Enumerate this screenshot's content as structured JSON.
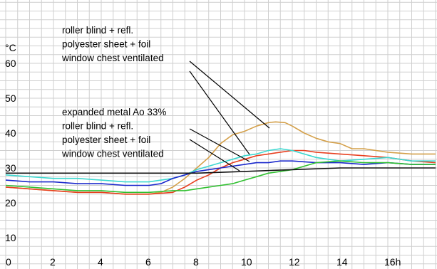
{
  "chart_data": {
    "type": "line",
    "xlim": [
      0,
      18
    ],
    "ylim": [
      0,
      70
    ],
    "grid": true,
    "y_unit_label": "°C",
    "x_tick_labels": [
      {
        "x": 0,
        "label": "0"
      },
      {
        "x": 2,
        "label": "2"
      },
      {
        "x": 4,
        "label": "4"
      },
      {
        "x": 6,
        "label": "6"
      },
      {
        "x": 8,
        "label": "8"
      },
      {
        "x": 10,
        "label": "10"
      },
      {
        "x": 12,
        "label": "12"
      },
      {
        "x": 14,
        "label": "14"
      },
      {
        "x": 16,
        "label": "16h"
      }
    ],
    "y_tick_labels": [
      {
        "y": 0,
        "label": ""
      },
      {
        "y": 10,
        "label": "10"
      },
      {
        "y": 20,
        "label": "20"
      },
      {
        "y": 30,
        "label": "30"
      },
      {
        "y": 40,
        "label": "40"
      },
      {
        "y": 50,
        "label": "50"
      },
      {
        "y": 60,
        "label": "60"
      }
    ],
    "series": [
      {
        "color": "#d4a04a",
        "x": [
          0,
          1,
          2,
          3,
          4,
          5,
          6,
          6.5,
          7,
          7.5,
          8,
          8.5,
          9,
          9.5,
          10,
          10.5,
          11,
          11.3,
          11.7,
          12,
          12.5,
          13,
          13.5,
          14,
          14.5,
          15,
          16,
          17,
          18
        ],
        "y": [
          24.5,
          24,
          23.5,
          23,
          23,
          22.5,
          22.5,
          23,
          24.5,
          27,
          30,
          33,
          37,
          39.5,
          40.5,
          42,
          43,
          43.2,
          43,
          42,
          40,
          38.5,
          37.5,
          37,
          35.5,
          35.5,
          34.5,
          34,
          34
        ]
      },
      {
        "color": "#e84020",
        "x": [
          0,
          1,
          2,
          3,
          4,
          5,
          6,
          7,
          7.5,
          8,
          8.5,
          9,
          9.5,
          10,
          10.5,
          11,
          11.5,
          12,
          12.5,
          13,
          14,
          15,
          16,
          17,
          18
        ],
        "y": [
          24.5,
          24,
          23.5,
          23,
          23,
          22.5,
          22.5,
          23,
          24.5,
          26.5,
          28,
          30,
          31.5,
          32.5,
          33.5,
          34,
          34.5,
          35,
          35,
          34.5,
          34,
          33.5,
          33,
          32,
          31.5
        ]
      },
      {
        "color": "#3cd8d0",
        "x": [
          0,
          1,
          2,
          3,
          4,
          5,
          6,
          6.5,
          7,
          7.5,
          8,
          8.5,
          9,
          9.5,
          10,
          10.5,
          11,
          11.5,
          12,
          13,
          14,
          15,
          16,
          17,
          18
        ],
        "y": [
          28,
          27.5,
          27,
          27,
          26.5,
          26,
          26,
          26.5,
          27,
          28,
          29.5,
          30.5,
          31.5,
          32.5,
          33.5,
          34,
          35,
          35.5,
          35,
          33,
          32,
          32.5,
          33,
          32,
          32
        ]
      },
      {
        "color": "#1a28cc",
        "x": [
          0,
          1,
          2,
          3,
          4,
          5,
          6,
          6.5,
          7,
          7.5,
          8,
          8.5,
          9,
          9.5,
          10,
          10.5,
          11,
          11.5,
          12,
          13,
          14,
          15,
          16,
          17,
          18
        ],
        "y": [
          26.5,
          26,
          26,
          25.5,
          25.5,
          25,
          25,
          25.5,
          27,
          28,
          29,
          29.5,
          30,
          30.5,
          31,
          31.5,
          31.5,
          32,
          32,
          31.5,
          31.5,
          31,
          31.5,
          31,
          31
        ]
      },
      {
        "color": "#30c030",
        "x": [
          0,
          1,
          2,
          3,
          4,
          5,
          6,
          7,
          7.5,
          8,
          8.5,
          9,
          9.5,
          10,
          10.5,
          11,
          11.5,
          12,
          12.5,
          13,
          14,
          15,
          16,
          17,
          18
        ],
        "y": [
          25,
          24.5,
          24,
          23.5,
          23.5,
          23,
          23,
          23.5,
          23.5,
          24,
          24.5,
          25,
          25.5,
          26.5,
          27.5,
          28.5,
          29,
          29.5,
          30.5,
          31.5,
          32,
          31.5,
          31.5,
          31,
          31
        ]
      },
      {
        "color": "#111111",
        "x": [
          0,
          6,
          8,
          10,
          12,
          14,
          16,
          18
        ],
        "y": [
          28.5,
          28.5,
          28.5,
          29,
          29.5,
          30,
          30,
          30
        ]
      }
    ],
    "annotations": [
      {
        "lines": [
          "roller blind + refl.",
          "polyester sheet + foil",
          "window chest ventilated"
        ]
      },
      {
        "lines": [
          "expanded metal Ao 33%",
          "roller blind + refl.",
          "polyester sheet + foil",
          "window chest ventilated"
        ]
      }
    ]
  }
}
